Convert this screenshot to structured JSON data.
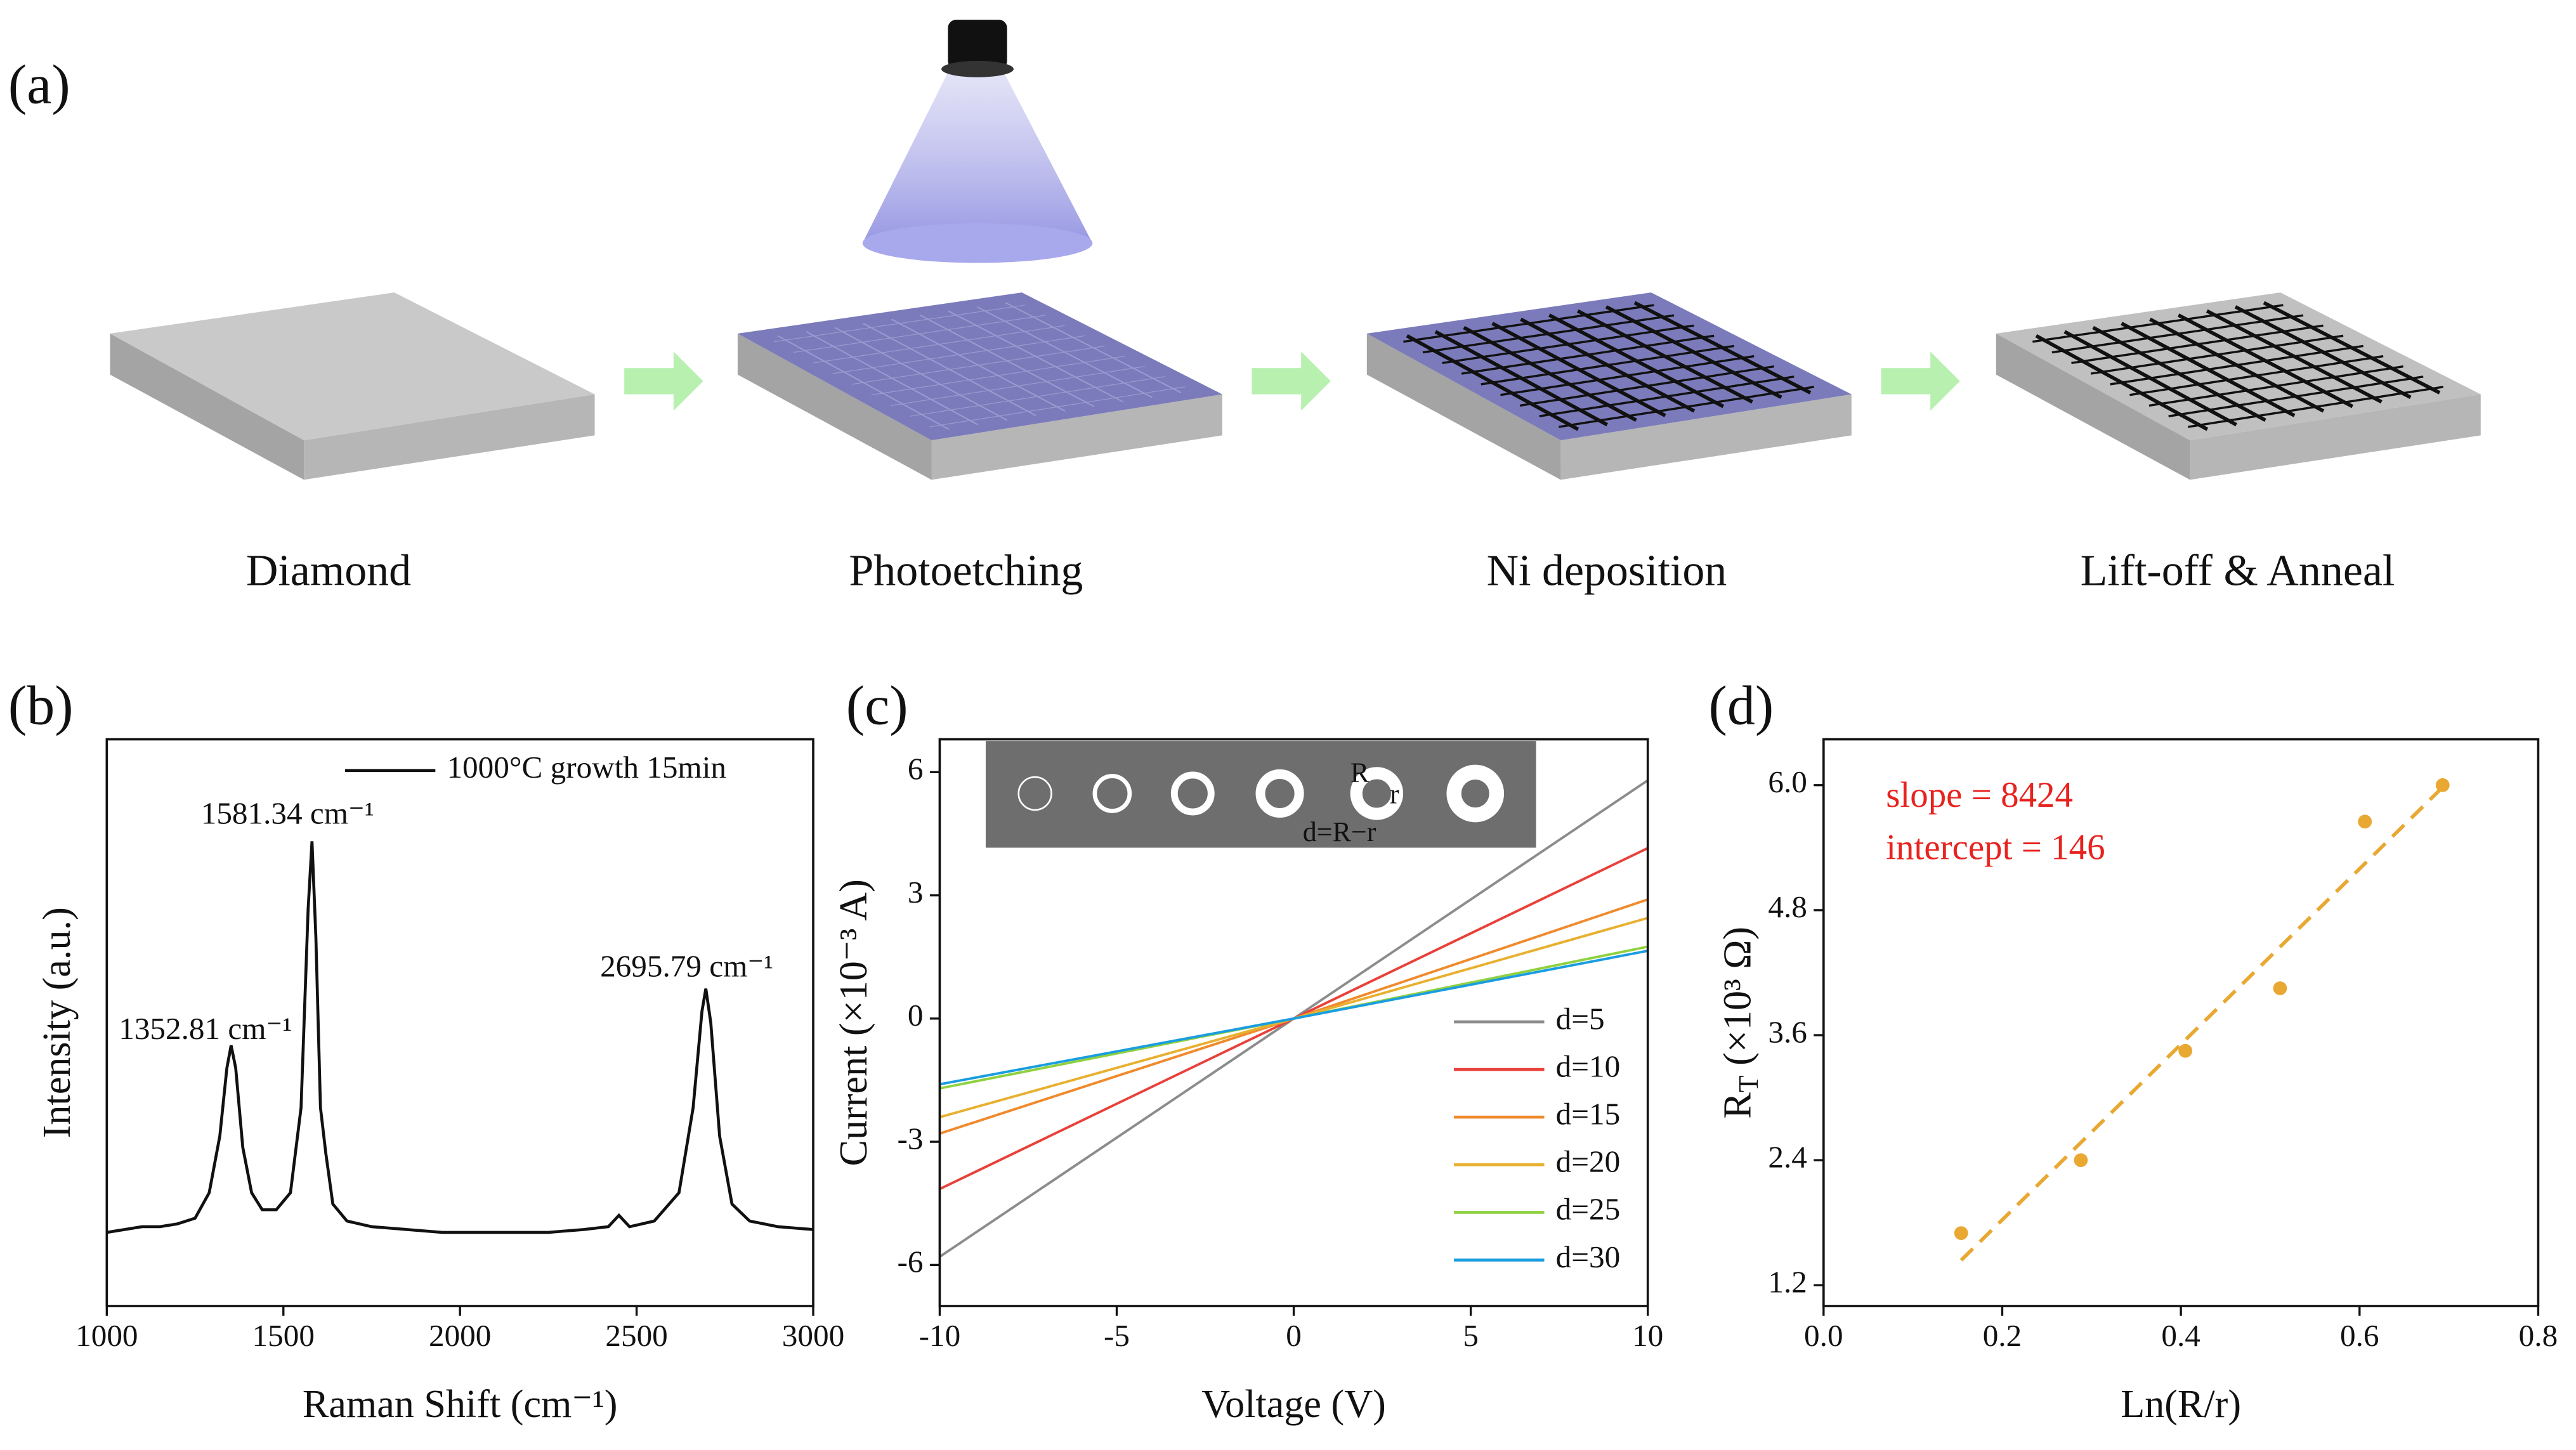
{
  "panel_labels": [
    "(a)",
    "(b)",
    "(c)",
    "(d)"
  ],
  "process": {
    "steps": [
      "Diamond",
      "Photoetching",
      "Ni deposition",
      "Lift-off & Anneal"
    ]
  },
  "chart_data": [
    {
      "type": "line",
      "xlabel": "Raman Shift (cm⁻¹)",
      "ylabel": "Intensity (a.u.)",
      "xlim": [
        1000,
        3000
      ],
      "xticks": [
        1000,
        1500,
        2000,
        2500,
        3000
      ],
      "ylim": [
        0,
        1
      ],
      "legend": "upper right",
      "series": [
        {
          "name": "1000°C growth 15min",
          "color": "#111111",
          "x": [
            1000,
            1050,
            1100,
            1150,
            1200,
            1250,
            1290,
            1320,
            1340,
            1352,
            1365,
            1385,
            1410,
            1440,
            1480,
            1520,
            1550,
            1570,
            1581,
            1592,
            1605,
            1620,
            1640,
            1680,
            1750,
            1850,
            1950,
            2050,
            2150,
            2250,
            2350,
            2420,
            2450,
            2480,
            2550,
            2620,
            2660,
            2685,
            2696,
            2710,
            2735,
            2770,
            2820,
            2900,
            3000
          ],
          "values": [
            0.13,
            0.135,
            0.14,
            0.14,
            0.145,
            0.155,
            0.2,
            0.3,
            0.42,
            0.46,
            0.42,
            0.28,
            0.2,
            0.17,
            0.17,
            0.2,
            0.35,
            0.7,
            0.82,
            0.65,
            0.35,
            0.27,
            0.18,
            0.15,
            0.14,
            0.135,
            0.13,
            0.13,
            0.13,
            0.13,
            0.135,
            0.14,
            0.16,
            0.14,
            0.15,
            0.2,
            0.35,
            0.52,
            0.56,
            0.5,
            0.3,
            0.18,
            0.15,
            0.14,
            0.135
          ]
        }
      ],
      "annotations": [
        "1581.34 cm⁻¹",
        "1352.81 cm⁻¹",
        "2695.79 cm⁻¹"
      ]
    },
    {
      "type": "line",
      "xlabel": "Voltage (V)",
      "ylabel": "Current (×10⁻³ A)",
      "xlim": [
        -10,
        10
      ],
      "xticks": [
        -10,
        -5,
        0,
        5,
        10
      ],
      "ylim": [
        -7,
        6.8
      ],
      "yticks": [
        -6,
        -3,
        0,
        3,
        6
      ],
      "legend": "lower right",
      "inset_labels": [
        "R",
        "r",
        "d=R−r"
      ],
      "series": [
        {
          "name": "d=5",
          "color": "#8c8c8c",
          "x": [
            -10,
            0,
            10
          ],
          "values": [
            -5.8,
            0,
            5.8
          ]
        },
        {
          "name": "d=10",
          "color": "#e8413a",
          "x": [
            -10,
            0,
            10
          ],
          "values": [
            -4.15,
            0,
            4.15
          ]
        },
        {
          "name": "d=15",
          "color": "#f08a2c",
          "x": [
            -10,
            0,
            10
          ],
          "values": [
            -2.8,
            0,
            2.9
          ]
        },
        {
          "name": "d=20",
          "color": "#e8b030",
          "x": [
            -10,
            0,
            10
          ],
          "values": [
            -2.4,
            0,
            2.45
          ]
        },
        {
          "name": "d=25",
          "color": "#8fd13f",
          "x": [
            -10,
            0,
            10
          ],
          "values": [
            -1.7,
            0,
            1.75
          ]
        },
        {
          "name": "d=30",
          "color": "#1a9de0",
          "x": [
            -10,
            0,
            10
          ],
          "values": [
            -1.6,
            0,
            1.65
          ]
        }
      ]
    },
    {
      "type": "scatter",
      "xlabel": "Ln(R/r)",
      "ylabel": {
        "main": "R",
        "sub": "T",
        "rest": " (×10³ Ω)"
      },
      "xlim": [
        0,
        0.8
      ],
      "xticks": [
        {
          "value": 0,
          "label": "0.0"
        },
        0.2,
        0.4,
        0.6,
        0.8
      ],
      "ylim": [
        1.0,
        6.44
      ],
      "yticks": [
        1.2,
        2.4,
        3.6,
        4.8,
        {
          "value": 6,
          "label": "6.0"
        }
      ],
      "color": "#e8a832",
      "x": [
        0.154,
        0.288,
        0.405,
        0.511,
        0.606,
        0.693
      ],
      "values": [
        1.7,
        2.4,
        3.45,
        4.05,
        5.65,
        6.0
      ],
      "fit": {
        "x": [
          0.154,
          0.693
        ],
        "values": [
          1.44,
          5.98
        ]
      },
      "annotations": [
        "slope = 8424",
        "intercept = 146"
      ],
      "annotation_color": "#e8231f"
    }
  ]
}
